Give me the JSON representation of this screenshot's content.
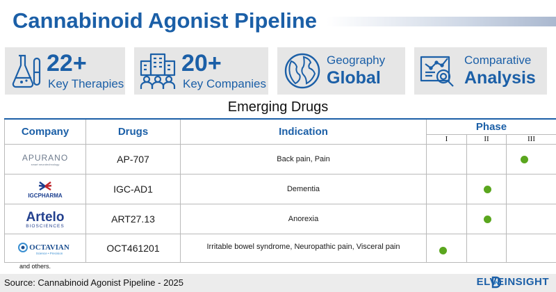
{
  "title": "Cannabinoid Agonist Pipeline",
  "stats": [
    {
      "icon": "lab-flask-icon",
      "big": "22+",
      "small": "Key Therapies"
    },
    {
      "icon": "city-buildings-icon",
      "big": "20+",
      "small": "Key Companies"
    },
    {
      "icon": "globe-icon",
      "small": "Geography",
      "big": "Global"
    },
    {
      "icon": "analytics-chart-icon",
      "small": "Comparative",
      "big": "Analysis"
    }
  ],
  "section_title": "Emerging Drugs",
  "table": {
    "headers": {
      "company": "Company",
      "drugs": "Drugs",
      "indication": "Indication",
      "phase": "Phase"
    },
    "phases": [
      "I",
      "II",
      "III"
    ],
    "rows": [
      {
        "company_logo": "APURANO",
        "logo_tagline": "smart neurotechnology",
        "drug": "AP-707",
        "indication": "Back pain, Pain",
        "phase": "III"
      },
      {
        "company_logo": "IGCPHARMA",
        "drug": "IGC-AD1",
        "indication": "Dementia",
        "phase": "II"
      },
      {
        "company_logo": "Artelo",
        "logo_tagline": "BIOSCIENCES",
        "drug": "ART27.13",
        "indication": "Anorexia",
        "phase": "II"
      },
      {
        "company_logo": "OCTAVIAN",
        "logo_tagline": "Science • Precision",
        "drug": "OCT461201",
        "indication": "Irritable bowel syndrome, Neuropathic pain, Visceral pain",
        "phase": "I"
      }
    ]
  },
  "footnote": "and others.",
  "source": "Source: Cannabinoid Agonist Pipeline - 2025",
  "brand": "ELVEINSIGHT",
  "colors": {
    "accent": "#1b5fa7",
    "dot": "#5aa61e",
    "box_bg": "#e6e6e6"
  }
}
